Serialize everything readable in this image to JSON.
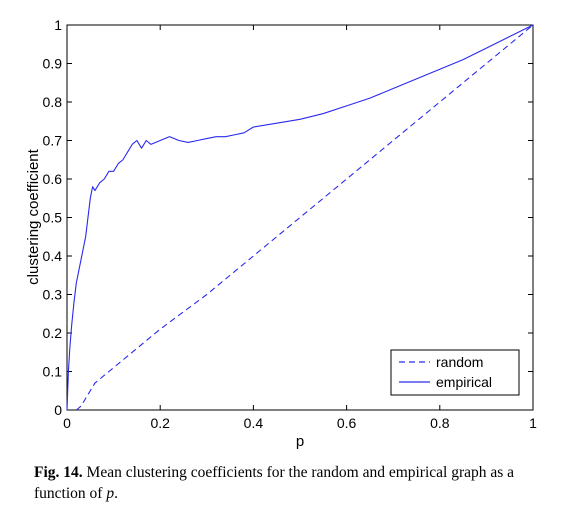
{
  "chart_data": {
    "type": "line",
    "title": "",
    "xlabel": "p",
    "ylabel": "clustering coefficient",
    "xlim": [
      0,
      1
    ],
    "ylim": [
      0,
      1
    ],
    "xticks": [
      "0",
      "0.2",
      "0.4",
      "0.6",
      "0.8",
      "1"
    ],
    "yticks": [
      "0",
      "0.1",
      "0.2",
      "0.3",
      "0.4",
      "0.5",
      "0.6",
      "0.7",
      "0.8",
      "0.9",
      "1"
    ],
    "grid": false,
    "legend_position": "bottom-right",
    "color": "#2a2aee",
    "series": [
      {
        "name": "random",
        "style": "dashed",
        "x": [
          0.02,
          0.03,
          0.04,
          0.05,
          0.06,
          0.08,
          0.1,
          0.12,
          0.15,
          0.18,
          0.2,
          0.25,
          0.3,
          0.35,
          0.4,
          0.45,
          0.5,
          0.55,
          0.6,
          0.65,
          0.7,
          0.75,
          0.8,
          0.85,
          0.9,
          0.95,
          1.0
        ],
        "y": [
          0.0,
          0.01,
          0.03,
          0.05,
          0.07,
          0.09,
          0.11,
          0.13,
          0.16,
          0.19,
          0.21,
          0.255,
          0.3,
          0.35,
          0.4,
          0.45,
          0.5,
          0.55,
          0.6,
          0.65,
          0.7,
          0.75,
          0.8,
          0.85,
          0.9,
          0.95,
          1.0
        ]
      },
      {
        "name": "empirical",
        "style": "solid",
        "x": [
          0.0,
          0.003,
          0.006,
          0.01,
          0.015,
          0.02,
          0.025,
          0.03,
          0.035,
          0.04,
          0.045,
          0.05,
          0.055,
          0.06,
          0.07,
          0.08,
          0.09,
          0.1,
          0.11,
          0.12,
          0.13,
          0.14,
          0.15,
          0.16,
          0.17,
          0.18,
          0.2,
          0.22,
          0.24,
          0.26,
          0.28,
          0.3,
          0.32,
          0.34,
          0.36,
          0.38,
          0.4,
          0.45,
          0.5,
          0.55,
          0.6,
          0.65,
          0.7,
          0.75,
          0.8,
          0.85,
          0.9,
          0.95,
          1.0
        ],
        "y": [
          0.0,
          0.1,
          0.16,
          0.22,
          0.28,
          0.33,
          0.36,
          0.39,
          0.42,
          0.45,
          0.5,
          0.55,
          0.58,
          0.57,
          0.59,
          0.6,
          0.62,
          0.62,
          0.64,
          0.65,
          0.67,
          0.69,
          0.7,
          0.68,
          0.7,
          0.69,
          0.7,
          0.71,
          0.7,
          0.695,
          0.7,
          0.705,
          0.71,
          0.71,
          0.715,
          0.72,
          0.735,
          0.745,
          0.755,
          0.77,
          0.79,
          0.81,
          0.835,
          0.86,
          0.885,
          0.91,
          0.94,
          0.97,
          1.0
        ]
      }
    ]
  },
  "caption": {
    "label": "Fig. 14.",
    "text_before_var": " Mean clustering coefficients for the random and empirical graph as a function of ",
    "variable": "p",
    "text_after_var": "."
  }
}
